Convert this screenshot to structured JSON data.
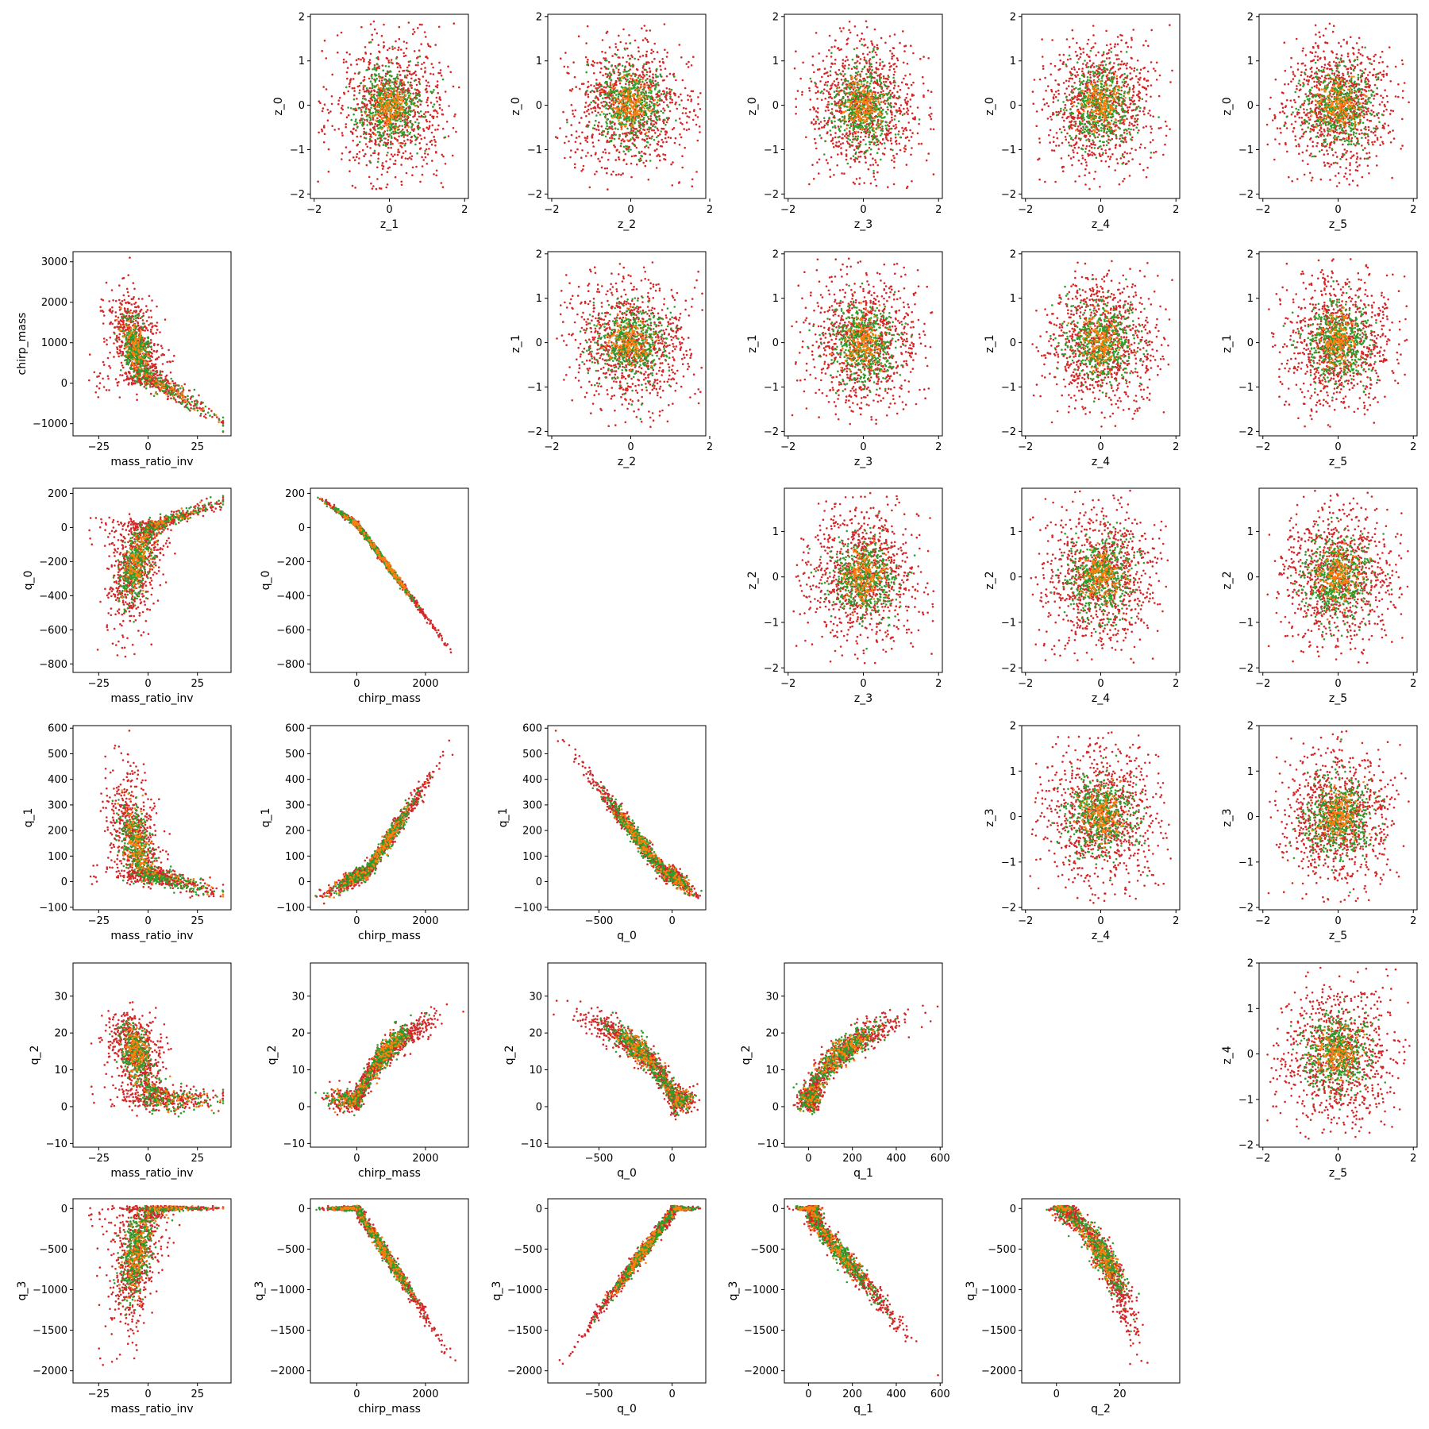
{
  "colors": {
    "red": "#d62728",
    "green": "#2ca02c",
    "orange": "#ff7f0e"
  },
  "chart_data": {
    "type": "scatter",
    "layout": "pair-grid",
    "rows": [
      "z_0",
      "chirp_mass",
      "q_0",
      "q_1",
      "q_2",
      "q_3"
    ],
    "cols": [
      "mass_ratio_inv",
      "chirp_mass",
      "q_0",
      "q_1",
      "q_2",
      "z_5"
    ],
    "panels": [
      {
        "row": 0,
        "col": 1,
        "xlabel": "z_1",
        "ylabel": "z_0",
        "xlim": [
          -2.1,
          2.1
        ],
        "ylim": [
          -2.1,
          2.05
        ],
        "xticks": [
          -2,
          0,
          2
        ],
        "yticks": [
          -2,
          -1,
          0,
          1,
          2
        ],
        "shape": "blob"
      },
      {
        "row": 0,
        "col": 2,
        "xlabel": "z_2",
        "ylabel": "z_0",
        "xlim": [
          -2.1,
          1.9
        ],
        "ylim": [
          -2.1,
          2.05
        ],
        "xticks": [
          -2,
          0,
          2
        ],
        "yticks": [
          -2,
          -1,
          0,
          1,
          2
        ],
        "shape": "blob"
      },
      {
        "row": 0,
        "col": 3,
        "xlabel": "z_3",
        "ylabel": "z_0",
        "xlim": [
          -2.1,
          2.1
        ],
        "ylim": [
          -2.1,
          2.05
        ],
        "xticks": [
          -2,
          0,
          2
        ],
        "yticks": [
          -2,
          -1,
          0,
          1,
          2
        ],
        "shape": "blob"
      },
      {
        "row": 0,
        "col": 4,
        "xlabel": "z_4",
        "ylabel": "z_0",
        "xlim": [
          -2.1,
          2.1
        ],
        "ylim": [
          -2.1,
          2.05
        ],
        "xticks": [
          -2,
          0,
          2
        ],
        "yticks": [
          -2,
          -1,
          0,
          1,
          2
        ],
        "shape": "blob"
      },
      {
        "row": 0,
        "col": 5,
        "xlabel": "z_5",
        "ylabel": "z_0",
        "xlim": [
          -2.1,
          2.1
        ],
        "ylim": [
          -2.1,
          2.05
        ],
        "xticks": [
          -2,
          0,
          2
        ],
        "yticks": [
          -2,
          -1,
          0,
          1,
          2
        ],
        "shape": "blob"
      },
      {
        "row": 1,
        "col": 0,
        "xlabel": "mass_ratio_inv",
        "ylabel": "chirp_mass",
        "xlim": [
          -38,
          42
        ],
        "ylim": [
          -1300,
          3250
        ],
        "xticks": [
          -25,
          0,
          25
        ],
        "yticks": [
          -1000,
          0,
          1000,
          2000,
          3000
        ],
        "shape": "mr_cm"
      },
      {
        "row": 1,
        "col": 2,
        "xlabel": "z_2",
        "ylabel": "z_1",
        "xlim": [
          -2.1,
          1.9
        ],
        "ylim": [
          -2.1,
          2.05
        ],
        "xticks": [
          -2,
          0,
          2
        ],
        "yticks": [
          -2,
          -1,
          0,
          1,
          2
        ],
        "shape": "blob"
      },
      {
        "row": 1,
        "col": 3,
        "xlabel": "z_3",
        "ylabel": "z_1",
        "xlim": [
          -2.1,
          2.1
        ],
        "ylim": [
          -2.1,
          2.05
        ],
        "xticks": [
          -2,
          0,
          2
        ],
        "yticks": [
          -2,
          -1,
          0,
          1,
          2
        ],
        "shape": "blob"
      },
      {
        "row": 1,
        "col": 4,
        "xlabel": "z_4",
        "ylabel": "z_1",
        "xlim": [
          -2.1,
          2.1
        ],
        "ylim": [
          -2.1,
          2.05
        ],
        "xticks": [
          -2,
          0,
          2
        ],
        "yticks": [
          -2,
          -1,
          0,
          1,
          2
        ],
        "shape": "blob"
      },
      {
        "row": 1,
        "col": 5,
        "xlabel": "z_5",
        "ylabel": "z_1",
        "xlim": [
          -2.1,
          2.1
        ],
        "ylim": [
          -2.1,
          2.05
        ],
        "xticks": [
          -2,
          0,
          2
        ],
        "yticks": [
          -2,
          -1,
          0,
          1,
          2
        ],
        "shape": "blob"
      },
      {
        "row": 2,
        "col": 0,
        "xlabel": "mass_ratio_inv",
        "ylabel": "q_0",
        "xlim": [
          -38,
          42
        ],
        "ylim": [
          -850,
          230
        ],
        "xticks": [
          -25,
          0,
          25
        ],
        "yticks": [
          -800,
          -600,
          -400,
          -200,
          0,
          200
        ],
        "shape": "mr_q0"
      },
      {
        "row": 2,
        "col": 1,
        "xlabel": "chirp_mass",
        "ylabel": "q_0",
        "xlim": [
          -1350,
          3250
        ],
        "ylim": [
          -850,
          230
        ],
        "xticks": [
          0,
          2000
        ],
        "yticks": [
          -800,
          -600,
          -400,
          -200,
          0,
          200
        ],
        "shape": "cm_q0"
      },
      {
        "row": 2,
        "col": 3,
        "xlabel": "z_3",
        "ylabel": "z_2",
        "xlim": [
          -2.1,
          2.1
        ],
        "ylim": [
          -2.1,
          1.95
        ],
        "xticks": [
          -2,
          0,
          2
        ],
        "yticks": [
          -2,
          -1,
          0,
          1
        ],
        "shape": "blob"
      },
      {
        "row": 2,
        "col": 4,
        "xlabel": "z_4",
        "ylabel": "z_2",
        "xlim": [
          -2.1,
          2.1
        ],
        "ylim": [
          -2.1,
          1.95
        ],
        "xticks": [
          -2,
          0,
          2
        ],
        "yticks": [
          -2,
          -1,
          0,
          1
        ],
        "shape": "blob"
      },
      {
        "row": 2,
        "col": 5,
        "xlabel": "z_5",
        "ylabel": "z_2",
        "xlim": [
          -2.1,
          2.1
        ],
        "ylim": [
          -2.1,
          1.95
        ],
        "xticks": [
          -2,
          0,
          2
        ],
        "yticks": [
          -2,
          -1,
          0,
          1
        ],
        "shape": "blob"
      },
      {
        "row": 3,
        "col": 0,
        "xlabel": "mass_ratio_inv",
        "ylabel": "q_1",
        "xlim": [
          -38,
          42
        ],
        "ylim": [
          -110,
          610
        ],
        "xticks": [
          -25,
          0,
          25
        ],
        "yticks": [
          -100,
          0,
          100,
          200,
          300,
          400,
          500,
          600
        ],
        "shape": "mr_q1"
      },
      {
        "row": 3,
        "col": 1,
        "xlabel": "chirp_mass",
        "ylabel": "q_1",
        "xlim": [
          -1350,
          3250
        ],
        "ylim": [
          -110,
          610
        ],
        "xticks": [
          0,
          2000
        ],
        "yticks": [
          -100,
          0,
          100,
          200,
          300,
          400,
          500,
          600
        ],
        "shape": "cm_q1"
      },
      {
        "row": 3,
        "col": 2,
        "xlabel": "q_0",
        "ylabel": "q_1",
        "xlim": [
          -850,
          230
        ],
        "ylim": [
          -110,
          610
        ],
        "xticks": [
          -500,
          0
        ],
        "yticks": [
          -100,
          0,
          100,
          200,
          300,
          400,
          500,
          600
        ],
        "shape": "q0_q1"
      },
      {
        "row": 3,
        "col": 4,
        "xlabel": "z_4",
        "ylabel": "z_3",
        "xlim": [
          -2.1,
          2.1
        ],
        "ylim": [
          -2.05,
          2.0
        ],
        "xticks": [
          -2,
          0,
          2
        ],
        "yticks": [
          -2,
          -1,
          0,
          1,
          2
        ],
        "shape": "blob"
      },
      {
        "row": 3,
        "col": 5,
        "xlabel": "z_5",
        "ylabel": "z_3",
        "xlim": [
          -2.1,
          2.1
        ],
        "ylim": [
          -2.05,
          2.0
        ],
        "xticks": [
          -2,
          0,
          2
        ],
        "yticks": [
          -2,
          -1,
          0,
          1,
          2
        ],
        "shape": "blob"
      },
      {
        "row": 4,
        "col": 0,
        "xlabel": "mass_ratio_inv",
        "ylabel": "q_2",
        "xlim": [
          -38,
          42
        ],
        "ylim": [
          -11,
          39
        ],
        "xticks": [
          -25,
          0,
          25
        ],
        "yticks": [
          -10,
          0,
          10,
          20,
          30
        ],
        "shape": "mr_q2"
      },
      {
        "row": 4,
        "col": 1,
        "xlabel": "chirp_mass",
        "ylabel": "q_2",
        "xlim": [
          -1350,
          3250
        ],
        "ylim": [
          -11,
          39
        ],
        "xticks": [
          0,
          2000
        ],
        "yticks": [
          -10,
          0,
          10,
          20,
          30
        ],
        "shape": "cm_q2"
      },
      {
        "row": 4,
        "col": 2,
        "xlabel": "q_0",
        "ylabel": "q_2",
        "xlim": [
          -850,
          230
        ],
        "ylim": [
          -11,
          39
        ],
        "xticks": [
          -500,
          0
        ],
        "yticks": [
          -10,
          0,
          10,
          20,
          30
        ],
        "shape": "q0_q2"
      },
      {
        "row": 4,
        "col": 3,
        "xlabel": "q_1",
        "ylabel": "q_2",
        "xlim": [
          -110,
          610
        ],
        "ylim": [
          -11,
          39
        ],
        "xticks": [
          0,
          200,
          400,
          600
        ],
        "yticks": [
          -10,
          0,
          10,
          20,
          30
        ],
        "shape": "q1_q2"
      },
      {
        "row": 4,
        "col": 5,
        "xlabel": "z_5",
        "ylabel": "z_4",
        "xlim": [
          -2.1,
          2.1
        ],
        "ylim": [
          -2.05,
          2.0
        ],
        "xticks": [
          -2,
          0,
          2
        ],
        "yticks": [
          -2,
          -1,
          0,
          1,
          2
        ],
        "shape": "blob"
      },
      {
        "row": 5,
        "col": 0,
        "xlabel": "mass_ratio_inv",
        "ylabel": "q_3",
        "xlim": [
          -38,
          42
        ],
        "ylim": [
          -2150,
          120
        ],
        "xticks": [
          -25,
          0,
          25
        ],
        "yticks": [
          -2000,
          -1500,
          -1000,
          -500,
          0
        ],
        "shape": "mr_q3"
      },
      {
        "row": 5,
        "col": 1,
        "xlabel": "chirp_mass",
        "ylabel": "q_3",
        "xlim": [
          -1350,
          3250
        ],
        "ylim": [
          -2150,
          120
        ],
        "xticks": [
          0,
          2000
        ],
        "yticks": [
          -2000,
          -1500,
          -1000,
          -500,
          0
        ],
        "shape": "cm_q3"
      },
      {
        "row": 5,
        "col": 2,
        "xlabel": "q_0",
        "ylabel": "q_3",
        "xlim": [
          -850,
          230
        ],
        "ylim": [
          -2150,
          120
        ],
        "xticks": [
          -500,
          0
        ],
        "yticks": [
          -2000,
          -1500,
          -1000,
          -500,
          0
        ],
        "shape": "q0_q3"
      },
      {
        "row": 5,
        "col": 3,
        "xlabel": "q_1",
        "ylabel": "q_3",
        "xlim": [
          -110,
          610
        ],
        "ylim": [
          -2150,
          120
        ],
        "xticks": [
          0,
          200,
          400,
          600
        ],
        "yticks": [
          -2000,
          -1500,
          -1000,
          -500,
          0
        ],
        "shape": "q1_q3"
      },
      {
        "row": 5,
        "col": 4,
        "xlabel": "q_2",
        "ylabel": "q_3",
        "xlim": [
          -11,
          39
        ],
        "ylim": [
          -2150,
          120
        ],
        "xticks": [
          0,
          20
        ],
        "yticks": [
          -2000,
          -1500,
          -1000,
          -500,
          0
        ],
        "shape": "q2_q3"
      }
    ],
    "series": [
      {
        "color": "red",
        "points_per_panel": 900
      },
      {
        "color": "green",
        "points_per_panel": 450
      },
      {
        "color": "orange",
        "points_per_panel": 160
      }
    ],
    "grid": false
  }
}
